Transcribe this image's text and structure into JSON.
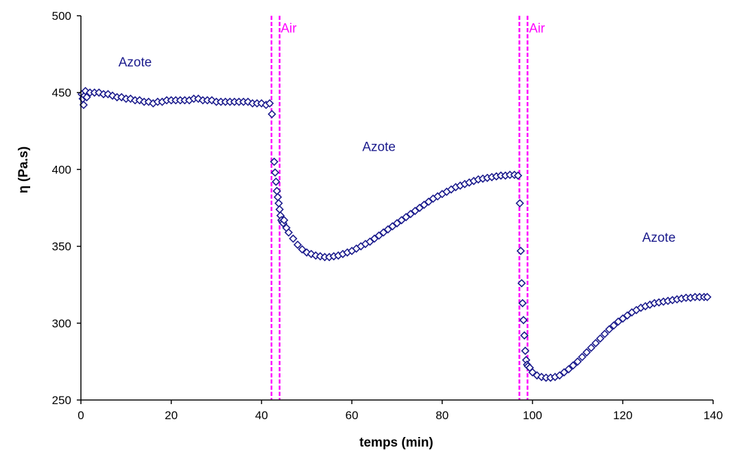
{
  "chart_data": {
    "type": "scatter",
    "xlabel": "temps (min)",
    "ylabel": "η (Pa.s)",
    "xlim": [
      0,
      140
    ],
    "ylim": [
      250,
      500
    ],
    "xticks": [
      0,
      20,
      40,
      60,
      80,
      100,
      120,
      140
    ],
    "yticks": [
      250,
      300,
      350,
      400,
      450,
      500
    ],
    "grid": false,
    "colors": {
      "marker": "#1a1a8c",
      "marker_fill": "#ffffff",
      "air_line": "#ff00ff",
      "azote_text": "#1a1a8c"
    },
    "marker": "diamond",
    "annotations": [
      {
        "text": "Azote",
        "x": 12,
        "y": 467,
        "kind": "azote"
      },
      {
        "text": "Air",
        "x": 46,
        "y": 489,
        "kind": "air"
      },
      {
        "text": "Azote",
        "x": 66,
        "y": 412,
        "kind": "azote"
      },
      {
        "text": "Air",
        "x": 101,
        "y": 489,
        "kind": "air"
      },
      {
        "text": "Azote",
        "x": 128,
        "y": 353,
        "kind": "azote"
      }
    ],
    "vlines": [
      42.2,
      44.0,
      97.1,
      98.9
    ],
    "series": [
      {
        "points": [
          [
            0.2,
            449
          ],
          [
            0.4,
            446
          ],
          [
            0.6,
            442
          ],
          [
            0.8,
            448
          ],
          [
            1.0,
            451
          ],
          [
            1.3,
            447
          ],
          [
            2,
            450
          ],
          [
            3,
            450
          ],
          [
            4,
            450
          ],
          [
            5,
            449
          ],
          [
            6,
            449
          ],
          [
            7,
            448
          ],
          [
            8,
            447
          ],
          [
            9,
            447
          ],
          [
            10,
            446
          ],
          [
            11,
            446
          ],
          [
            12,
            445
          ],
          [
            13,
            445
          ],
          [
            14,
            444
          ],
          [
            15,
            444
          ],
          [
            16,
            443
          ],
          [
            17,
            444
          ],
          [
            18,
            444
          ],
          [
            19,
            445
          ],
          [
            20,
            445
          ],
          [
            21,
            445
          ],
          [
            22,
            445
          ],
          [
            23,
            445
          ],
          [
            24,
            445
          ],
          [
            25,
            446
          ],
          [
            26,
            446
          ],
          [
            27,
            445
          ],
          [
            28,
            445
          ],
          [
            29,
            445
          ],
          [
            30,
            444
          ],
          [
            31,
            444
          ],
          [
            32,
            444
          ],
          [
            33,
            444
          ],
          [
            34,
            444
          ],
          [
            35,
            444
          ],
          [
            36,
            444
          ],
          [
            37,
            444
          ],
          [
            38,
            443
          ],
          [
            39,
            443
          ],
          [
            40,
            443
          ],
          [
            41,
            442
          ],
          [
            41.8,
            443
          ],
          [
            42.3,
            436
          ],
          [
            42.8,
            405
          ],
          [
            43.0,
            398
          ],
          [
            43.2,
            392
          ],
          [
            43.4,
            386
          ],
          [
            43.6,
            382
          ],
          [
            43.8,
            378
          ],
          [
            44.0,
            374
          ],
          [
            44.2,
            370
          ],
          [
            44.4,
            367
          ],
          [
            44.6,
            366
          ],
          [
            44.8,
            365
          ],
          [
            45.0,
            367
          ],
          [
            45.5,
            362
          ],
          [
            46,
            359
          ],
          [
            47,
            355
          ],
          [
            48,
            351
          ],
          [
            49,
            348
          ],
          [
            50,
            346
          ],
          [
            51,
            345
          ],
          [
            52,
            344
          ],
          [
            53,
            343.5
          ],
          [
            54,
            343
          ],
          [
            55,
            343
          ],
          [
            56,
            343.5
          ],
          [
            57,
            344
          ],
          [
            58,
            345
          ],
          [
            59,
            346
          ],
          [
            60,
            347
          ],
          [
            61,
            348.5
          ],
          [
            62,
            350
          ],
          [
            63,
            351.5
          ],
          [
            64,
            353
          ],
          [
            65,
            355
          ],
          [
            66,
            357
          ],
          [
            67,
            359
          ],
          [
            68,
            361
          ],
          [
            69,
            363
          ],
          [
            70,
            365
          ],
          [
            71,
            367
          ],
          [
            72,
            369
          ],
          [
            73,
            371
          ],
          [
            74,
            373
          ],
          [
            75,
            375
          ],
          [
            76,
            377
          ],
          [
            77,
            379
          ],
          [
            78,
            381
          ],
          [
            79,
            382.5
          ],
          [
            80,
            384
          ],
          [
            81,
            385.5
          ],
          [
            82,
            387
          ],
          [
            83,
            388.5
          ],
          [
            84,
            389.5
          ],
          [
            85,
            390.5
          ],
          [
            86,
            391.5
          ],
          [
            87,
            392.5
          ],
          [
            88,
            393.5
          ],
          [
            89,
            394
          ],
          [
            90,
            394.5
          ],
          [
            91,
            395
          ],
          [
            92,
            395.5
          ],
          [
            93,
            396
          ],
          [
            94,
            396
          ],
          [
            95,
            396.5
          ],
          [
            96,
            396.5
          ],
          [
            96.8,
            396
          ],
          [
            97.2,
            378
          ],
          [
            97.4,
            347
          ],
          [
            97.6,
            326
          ],
          [
            97.8,
            313
          ],
          [
            98.0,
            302
          ],
          [
            98.2,
            292
          ],
          [
            98.4,
            282
          ],
          [
            98.6,
            276
          ],
          [
            98.8,
            273
          ],
          [
            99.0,
            272
          ],
          [
            99.4,
            271
          ],
          [
            100,
            268
          ],
          [
            101,
            266
          ],
          [
            102,
            265
          ],
          [
            103,
            264.5
          ],
          [
            104,
            264.5
          ],
          [
            105,
            265
          ],
          [
            106,
            266
          ],
          [
            107,
            268
          ],
          [
            108,
            270
          ],
          [
            109,
            272.5
          ],
          [
            110,
            275
          ],
          [
            111,
            278
          ],
          [
            112,
            281
          ],
          [
            113,
            284
          ],
          [
            114,
            287
          ],
          [
            115,
            290
          ],
          [
            116,
            293
          ],
          [
            117,
            296
          ],
          [
            118,
            298.5
          ],
          [
            119,
            301
          ],
          [
            120,
            303
          ],
          [
            121,
            305
          ],
          [
            122,
            307
          ],
          [
            123,
            308.5
          ],
          [
            124,
            310
          ],
          [
            125,
            311
          ],
          [
            126,
            312
          ],
          [
            127,
            313
          ],
          [
            128,
            313.5
          ],
          [
            129,
            314
          ],
          [
            130,
            314.5
          ],
          [
            131,
            315
          ],
          [
            132,
            315.5
          ],
          [
            133,
            316
          ],
          [
            134,
            316.5
          ],
          [
            135,
            316.5
          ],
          [
            136,
            317
          ],
          [
            137,
            317
          ],
          [
            138,
            317
          ],
          [
            138.7,
            317
          ]
        ]
      }
    ]
  }
}
